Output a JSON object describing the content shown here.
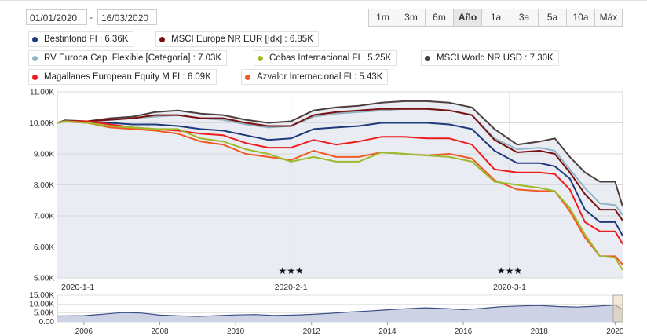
{
  "date_range": {
    "from": "01/01/2020",
    "separator": "-",
    "to": "16/03/2020"
  },
  "range_buttons": [
    {
      "label": "1m",
      "active": false
    },
    {
      "label": "3m",
      "active": false
    },
    {
      "label": "6m",
      "active": false
    },
    {
      "label": "Año",
      "active": true
    },
    {
      "label": "1a",
      "active": false
    },
    {
      "label": "3a",
      "active": false
    },
    {
      "label": "5a",
      "active": false
    },
    {
      "label": "10a",
      "active": false
    },
    {
      "label": "Máx",
      "active": false
    }
  ],
  "legend": [
    {
      "label": "Bestinfond FI : 6.36K",
      "color": "#1f3a7a"
    },
    {
      "label": "MSCI Europe NR EUR [Idx] : 6.85K",
      "color": "#7a0f0f"
    },
    {
      "label": "RV Europa Cap. Flexible [Categoría] : 7.03K",
      "color": "#93b4c6"
    },
    {
      "label": "Cobas Internacional FI : 5.25K",
      "color": "#9cbb2c"
    },
    {
      "label": "MSCI World NR USD : 7.30K",
      "color": "#4d3f3f"
    },
    {
      "label": "Magallanes European Equity M FI : 6.09K",
      "color": "#ee1c1c"
    },
    {
      "label": "Azvalor Internacional FI : 5.43K",
      "color": "#f15a24"
    }
  ],
  "chart_data": {
    "type": "line",
    "ylim": [
      5000,
      11000
    ],
    "yticks": [
      5000,
      6000,
      7000,
      8000,
      9000,
      10000,
      11000
    ],
    "ytick_labels": [
      "5.00K",
      "6.00K",
      "7.00K",
      "8.00K",
      "9.00K",
      "10.00K",
      "11.00K"
    ],
    "xrange_days": [
      0,
      75
    ],
    "xticks": [
      {
        "day": 0,
        "label": "2020-1-1"
      },
      {
        "day": 31,
        "label": "2020-2-1"
      },
      {
        "day": 60,
        "label": "2020-3-1"
      }
    ],
    "markers": [
      {
        "day": 31,
        "label": "★★★"
      },
      {
        "day": 60,
        "label": "★★★"
      }
    ],
    "series": [
      {
        "name": "MSCI World NR USD",
        "color": "#4d3f3f",
        "x": [
          0,
          1,
          4,
          7,
          10,
          13,
          16,
          19,
          22,
          25,
          28,
          31,
          34,
          37,
          40,
          43,
          46,
          49,
          52,
          55,
          58,
          61,
          64,
          66,
          68,
          70,
          72,
          74,
          75
        ],
        "y": [
          10000,
          10080,
          10050,
          10150,
          10200,
          10350,
          10400,
          10300,
          10250,
          10100,
          10000,
          10050,
          10400,
          10500,
          10550,
          10650,
          10700,
          10700,
          10650,
          10500,
          9800,
          9300,
          9400,
          9500,
          8900,
          8400,
          8100,
          8100,
          7300
        ]
      },
      {
        "name": "RV Europa Cap. Flexible [Categoría]",
        "color": "#93b4c6",
        "x": [
          0,
          1,
          4,
          7,
          10,
          13,
          16,
          19,
          22,
          25,
          28,
          31,
          34,
          37,
          40,
          43,
          46,
          49,
          52,
          55,
          58,
          61,
          64,
          66,
          68,
          70,
          72,
          74,
          75
        ],
        "y": [
          10000,
          10060,
          10030,
          10100,
          10150,
          10200,
          10250,
          10150,
          10100,
          9950,
          9850,
          9900,
          10200,
          10300,
          10350,
          10400,
          10450,
          10450,
          10400,
          10250,
          9500,
          9150,
          9200,
          9100,
          8500,
          7900,
          7400,
          7350,
          7030
        ]
      },
      {
        "name": "MSCI Europe NR EUR [Idx]",
        "color": "#7a0f0f",
        "x": [
          0,
          1,
          4,
          7,
          10,
          13,
          16,
          19,
          22,
          25,
          28,
          31,
          34,
          37,
          40,
          43,
          46,
          49,
          52,
          55,
          58,
          61,
          64,
          66,
          68,
          70,
          72,
          74,
          75
        ],
        "y": [
          10000,
          10060,
          10050,
          10100,
          10150,
          10250,
          10250,
          10150,
          10150,
          10000,
          9900,
          9900,
          10250,
          10350,
          10400,
          10450,
          10450,
          10450,
          10400,
          10250,
          9450,
          9050,
          9100,
          9000,
          8400,
          7700,
          7200,
          7200,
          6850
        ]
      },
      {
        "name": "Bestinfond FI",
        "color": "#1f3a7a",
        "x": [
          0,
          1,
          4,
          7,
          10,
          13,
          16,
          19,
          22,
          25,
          28,
          31,
          34,
          37,
          40,
          43,
          46,
          49,
          52,
          55,
          58,
          61,
          64,
          66,
          68,
          70,
          72,
          74,
          75
        ],
        "y": [
          10000,
          10050,
          10000,
          10000,
          9950,
          9950,
          9900,
          9800,
          9750,
          9600,
          9450,
          9500,
          9800,
          9850,
          9900,
          10000,
          10000,
          10000,
          9950,
          9800,
          9100,
          8700,
          8700,
          8600,
          8200,
          7200,
          6800,
          6800,
          6360
        ]
      },
      {
        "name": "Magallanes European Equity M FI",
        "color": "#ee1c1c",
        "x": [
          0,
          1,
          4,
          7,
          10,
          13,
          16,
          19,
          22,
          25,
          28,
          31,
          34,
          37,
          40,
          43,
          46,
          49,
          52,
          55,
          58,
          61,
          64,
          66,
          68,
          70,
          72,
          74,
          75
        ],
        "y": [
          10000,
          10050,
          10050,
          9950,
          9850,
          9800,
          9750,
          9650,
          9600,
          9350,
          9200,
          9200,
          9450,
          9300,
          9400,
          9550,
          9550,
          9500,
          9500,
          9300,
          8500,
          8400,
          8400,
          8350,
          7850,
          6800,
          6500,
          6500,
          6090
        ]
      },
      {
        "name": "Azvalor Internacional FI",
        "color": "#f15a24",
        "x": [
          0,
          1,
          4,
          7,
          10,
          13,
          16,
          19,
          22,
          25,
          28,
          31,
          34,
          37,
          40,
          43,
          46,
          49,
          52,
          55,
          58,
          61,
          64,
          66,
          68,
          70,
          72,
          74,
          75
        ],
        "y": [
          10000,
          10050,
          10000,
          9850,
          9800,
          9750,
          9650,
          9400,
          9300,
          9000,
          8900,
          8800,
          9100,
          8900,
          8900,
          9050,
          9000,
          8950,
          9000,
          8850,
          8150,
          7850,
          7800,
          7800,
          7150,
          6300,
          5700,
          5700,
          5430
        ]
      },
      {
        "name": "Cobas Internacional FI",
        "color": "#9cbb2c",
        "x": [
          0,
          1,
          4,
          7,
          10,
          13,
          16,
          19,
          22,
          25,
          28,
          31,
          34,
          37,
          40,
          43,
          46,
          49,
          52,
          55,
          58,
          61,
          64,
          66,
          68,
          70,
          72,
          74,
          75
        ],
        "y": [
          10000,
          10050,
          10000,
          9900,
          9850,
          9800,
          9800,
          9500,
          9400,
          9150,
          9000,
          8750,
          8900,
          8750,
          8750,
          9050,
          9000,
          8950,
          8900,
          8750,
          8100,
          8000,
          7900,
          7800,
          7250,
          6400,
          5700,
          5650,
          5250
        ]
      }
    ]
  },
  "navigator": {
    "ylim": [
      0,
      15000
    ],
    "yticks": [
      0,
      5000,
      10000,
      15000
    ],
    "ytick_labels": [
      "0.00",
      "5.00K",
      "10.00K",
      "15.00K"
    ],
    "xlim": [
      2005.3,
      2020.2
    ],
    "xticks": [
      2006,
      2008,
      2010,
      2012,
      2014,
      2016,
      2018,
      2020
    ],
    "x": [
      2005.3,
      2006,
      2006.5,
      2007,
      2007.5,
      2008,
      2008.5,
      2009,
      2009.5,
      2010,
      2010.5,
      2011,
      2011.5,
      2012,
      2012.5,
      2013,
      2013.5,
      2014,
      2014.5,
      2015,
      2015.5,
      2016,
      2016.5,
      2017,
      2017.5,
      2018,
      2018.5,
      2019,
      2019.5,
      2020,
      2020.2
    ],
    "y": [
      3300,
      3500,
      4300,
      5200,
      5000,
      3800,
      3400,
      3100,
      3500,
      3900,
      4100,
      3600,
      3800,
      4200,
      4800,
      5500,
      6100,
      6800,
      7400,
      7900,
      7500,
      6900,
      7600,
      8500,
      8900,
      9200,
      8600,
      8300,
      8800,
      9400,
      7000
    ]
  }
}
